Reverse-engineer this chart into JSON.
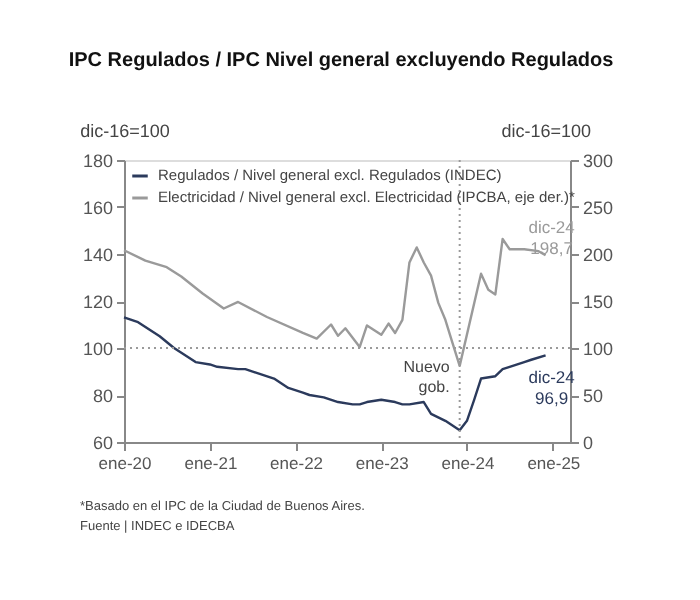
{
  "chart_data": {
    "type": "line",
    "title": "IPC Regulados / IPC Nivel general excluyendo Regulados",
    "ylabel": "dic-16=100",
    "y2label": "dic-16=100",
    "x": [
      "2020-01",
      "2020-03",
      "2020-06",
      "2020-08",
      "2020-11",
      "2021-01",
      "2021-02",
      "2021-05",
      "2021-06",
      "2021-08",
      "2021-10",
      "2021-12",
      "2022-02",
      "2022-03",
      "2022-05",
      "2022-07",
      "2022-09",
      "2022-10",
      "2022-11",
      "2023-01",
      "2023-03",
      "2023-04",
      "2023-05",
      "2023-07",
      "2023-08",
      "2023-10",
      "2023-12",
      "2024-01",
      "2024-02",
      "2024-03",
      "2024-05",
      "2024-06",
      "2024-07",
      "2024-09",
      "2024-10",
      "2024-12"
    ],
    "series": [
      {
        "name": "Regulados / Nivel general excl. Regulados (INDEC)",
        "color": "#2b3a5c",
        "values": [
          113,
          111,
          105,
          100,
          94,
          93,
          92,
          91,
          91,
          89,
          87,
          83,
          81,
          80,
          79,
          77,
          76,
          76,
          77,
          78,
          77,
          76,
          76,
          77,
          72,
          69,
          65,
          69,
          78,
          87,
          88,
          91,
          92,
          94,
          95,
          96.9
        ]
      },
      {
        "name": "Electricidad / Nivel general excl. Electricidad (IPCBA, eje der.)*",
        "color": "#9a9a9a",
        "axis": "y2",
        "x": [
          "2020-01",
          "2020-04",
          "2020-07",
          "2020-09",
          "2020-12",
          "2021-03",
          "2021-05",
          "2021-09",
          "2022-02",
          "2022-04",
          "2022-06",
          "2022-07",
          "2022-08",
          "2022-10",
          "2022-11",
          "2023-01",
          "2023-02",
          "2023-03",
          "2023-04",
          "2023-05",
          "2023-06",
          "2023-07",
          "2023-08",
          "2023-09",
          "2023-10",
          "2023-11",
          "2023-12",
          "2024-03",
          "2024-04",
          "2024-05",
          "2024-06",
          "2024-07",
          "2024-09",
          "2024-11",
          "2024-12"
        ],
        "values": [
          204,
          193,
          186,
          176,
          158,
          142,
          149,
          133,
          116,
          110,
          125,
          113,
          121,
          101,
          124,
          114,
          126,
          116,
          130,
          191,
          207,
          191,
          177,
          148,
          130,
          105,
          81,
          179,
          162,
          157,
          216,
          205,
          205,
          203,
          198.7
        ]
      }
    ],
    "xlim": [
      "2020-01",
      "2025-03-15"
    ],
    "xticks": [
      {
        "value": "2020-01",
        "label": "ene-20"
      },
      {
        "value": "2021-01",
        "label": "ene-21"
      },
      {
        "value": "2022-01",
        "label": "ene-22"
      },
      {
        "value": "2023-01",
        "label": "ene-23"
      },
      {
        "value": "2024-01",
        "label": "ene-24"
      },
      {
        "value": "2025-01",
        "label": "ene-25"
      }
    ],
    "ylim": [
      60,
      180
    ],
    "yticks": [
      60,
      80,
      100,
      120,
      140,
      160,
      180
    ],
    "y2lim": [
      0,
      300
    ],
    "y2ticks": [
      0,
      50,
      100,
      150,
      200,
      250,
      300
    ],
    "ref_lines": [
      {
        "axis": "y",
        "value": 100,
        "color": "#9a9a9a",
        "line_style": "dotted"
      },
      {
        "axis": "x",
        "value": "2023-12",
        "label": "Nuevo gob.",
        "color": "#9a9a9a",
        "line_style": "dotted"
      }
    ],
    "annotations": [
      "dic-24\n198,7",
      {
        "text": "dic-24\n96,9",
        "x": "2024-12",
        "y": 96.9
      },
      "*Basado en el IPC de la Ciudad de Buenos Aires.",
      "Fuente | INDEC e IDECBA"
    ],
    "legend": "top left",
    "grid": false,
    "marker": "none",
    "line_style": "solid"
  }
}
